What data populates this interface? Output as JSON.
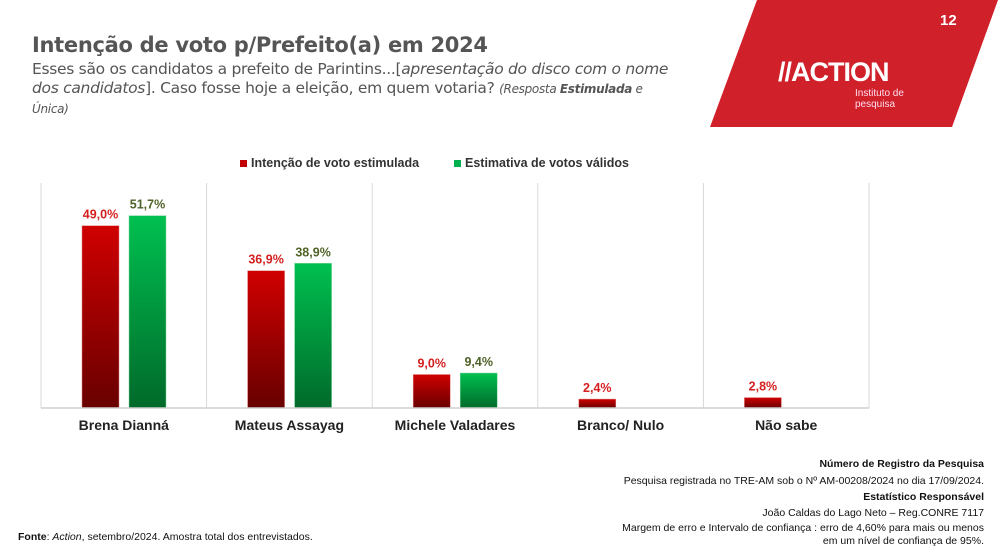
{
  "header": {
    "title": "Intenção de voto p/Prefeito(a) em 2024",
    "subtitle_1": "Esses são os candidatos a prefeito de Parintins...[",
    "subtitle_italic": "apresentação do disco com o nome dos candidatos",
    "subtitle_2": "]. Caso fosse hoje a eleição, em quem votaria? ",
    "note_1": "(Resposta ",
    "note_bold": "Estimulada",
    "note_2": " e Única)"
  },
  "brand": {
    "page_number": "12",
    "logo": "//ACTION",
    "logo_sub": "Instituto de pesquisa",
    "color": "#d0202a"
  },
  "chart_data": {
    "type": "bar",
    "categories": [
      "Brena Dianná",
      "Mateus Assayag",
      "Michele Valadares",
      "Branco/ Nulo",
      "Não sabe"
    ],
    "series": [
      {
        "name": "Intenção de voto estimulada",
        "color": "#c00000",
        "values": [
          49.0,
          36.9,
          9.0,
          2.4,
          2.8
        ],
        "labels": [
          "49,0%",
          "36,9%",
          "9,0%",
          "2,4%",
          "2,8%"
        ]
      },
      {
        "name": "Estimativa de votos válidos",
        "color": "#00b050",
        "values": [
          51.7,
          38.9,
          9.4,
          null,
          null
        ],
        "labels": [
          "51,7%",
          "38,9%",
          "9,4%",
          null,
          null
        ]
      }
    ],
    "ylim": [
      0,
      60
    ],
    "legend": "top-center"
  },
  "footer": {
    "source_label": "Fonte",
    "source_italic": "Action",
    "source_text": ", setembro/2024. Amostra total dos entrevistados.",
    "reg_title": "Número de Registro da Pesquisa",
    "reg_text": "Pesquisa registrada no TRE-AM sob o Nº AM-00208/2024 no dia 17/09/2024.",
    "stat_title": "Estatístico Responsável",
    "stat_text": "João Caldas do Lago Neto – Reg.CONRE 7117",
    "margin_1": "Margem de erro e Intervalo de confiança : erro de 4,60% para mais ou menos",
    "margin_2": "em um nível de confiança de 95%."
  }
}
